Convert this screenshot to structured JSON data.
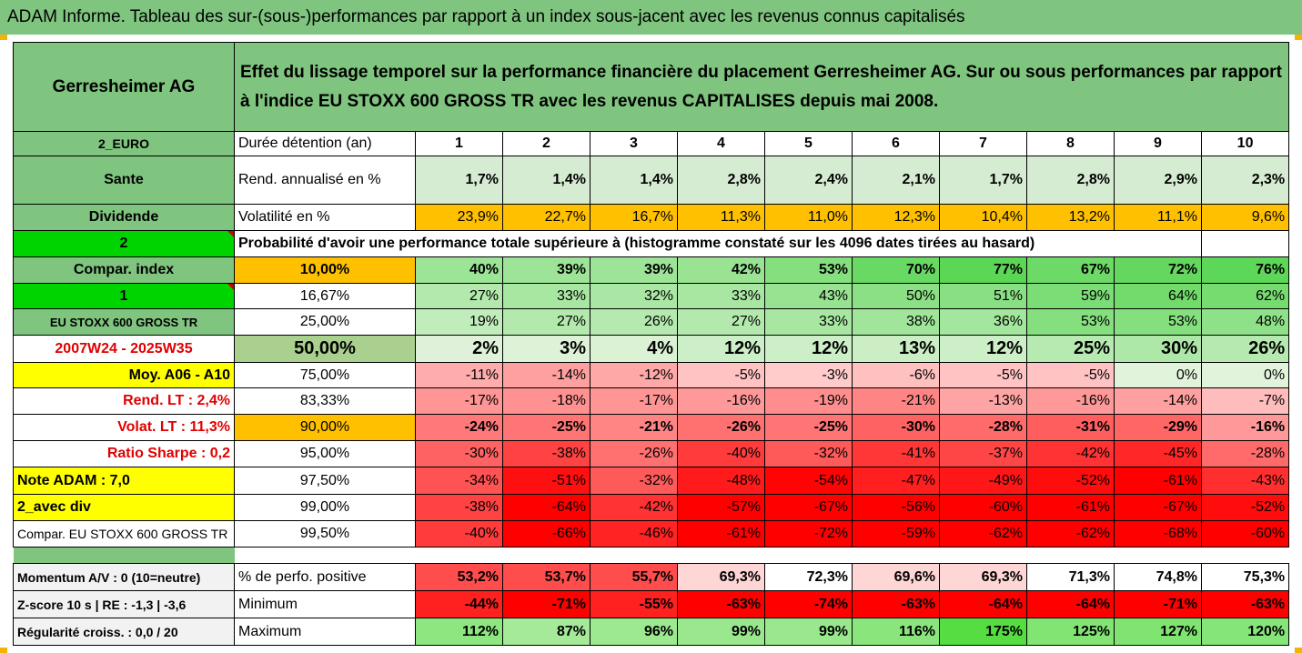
{
  "banner": "ADAM Informe. Tableau des sur-(sous-)performances par rapport à un index sous-jacent avec les revenus connus capitalisés",
  "header": {
    "company": "Gerresheimer AG",
    "description": "Effet du lissage temporel sur la performance financière du placement Gerresheimer AG. Sur ou sous performances par rapport à l'indice EU STOXX 600 GROSS TR avec les revenus CAPITALISES depuis mai 2008."
  },
  "rows": {
    "duration": {
      "side": "2_EURO",
      "label": "Durée détention (an)",
      "values": [
        "1",
        "2",
        "3",
        "4",
        "5",
        "6",
        "7",
        "8",
        "9",
        "10"
      ]
    },
    "rend": {
      "side": "Sante",
      "label": "Rend. annualisé en %",
      "values": [
        "1,7%",
        "1,4%",
        "1,4%",
        "2,8%",
        "2,4%",
        "2,1%",
        "1,7%",
        "2,8%",
        "2,9%",
        "2,3%"
      ]
    },
    "vol": {
      "side": "Dividende",
      "label": "Volatilité en %",
      "values": [
        "23,9%",
        "22,7%",
        "16,7%",
        "11,3%",
        "11,0%",
        "12,3%",
        "10,4%",
        "13,2%",
        "11,1%",
        "9,6%"
      ]
    },
    "prob_header": {
      "side": "2",
      "text": "Probabilité d'avoir une performance totale supérieure à (histogramme constaté sur les 4096 dates tirées au hasard)"
    }
  },
  "prob_rows": [
    {
      "side": "Compar. index",
      "threshold": "10,00%",
      "values": [
        "40%",
        "39%",
        "39%",
        "42%",
        "53%",
        "70%",
        "77%",
        "67%",
        "72%",
        "76%"
      ]
    },
    {
      "side": "1",
      "threshold": "16,67%",
      "values": [
        "27%",
        "33%",
        "32%",
        "33%",
        "43%",
        "50%",
        "51%",
        "59%",
        "64%",
        "62%"
      ]
    },
    {
      "side": "EU STOXX 600 GROSS TR",
      "threshold": "25,00%",
      "values": [
        "19%",
        "27%",
        "26%",
        "27%",
        "33%",
        "38%",
        "36%",
        "53%",
        "53%",
        "48%"
      ]
    },
    {
      "side": "2007W24 - 2025W35",
      "threshold": "50,00%",
      "values": [
        "2%",
        "3%",
        "4%",
        "12%",
        "12%",
        "13%",
        "12%",
        "25%",
        "30%",
        "26%"
      ]
    },
    {
      "side": "Moy. A06 - A10",
      "threshold": "75,00%",
      "values": [
        "-11%",
        "-14%",
        "-12%",
        "-5%",
        "-3%",
        "-6%",
        "-5%",
        "-5%",
        "0%",
        "0%"
      ]
    },
    {
      "side": "Rend. LT :    2,4%",
      "threshold": "83,33%",
      "values": [
        "-17%",
        "-18%",
        "-17%",
        "-16%",
        "-19%",
        "-21%",
        "-13%",
        "-16%",
        "-14%",
        "-7%"
      ]
    },
    {
      "side": "Volat. LT :   11,3%",
      "threshold": "90,00%",
      "values": [
        "-24%",
        "-25%",
        "-21%",
        "-26%",
        "-25%",
        "-30%",
        "-28%",
        "-31%",
        "-29%",
        "-16%"
      ]
    },
    {
      "side": "Ratio Sharpe :   0,2",
      "threshold": "95,00%",
      "values": [
        "-30%",
        "-38%",
        "-26%",
        "-40%",
        "-32%",
        "-41%",
        "-37%",
        "-42%",
        "-45%",
        "-28%"
      ]
    },
    {
      "side": "Note ADAM : 7,0",
      "threshold": "97,50%",
      "values": [
        "-34%",
        "-51%",
        "-32%",
        "-48%",
        "-54%",
        "-47%",
        "-49%",
        "-52%",
        "-61%",
        "-43%"
      ]
    },
    {
      "side": "2_avec div",
      "threshold": "99,00%",
      "values": [
        "-38%",
        "-64%",
        "-42%",
        "-57%",
        "-67%",
        "-56%",
        "-60%",
        "-61%",
        "-67%",
        "-52%"
      ]
    },
    {
      "side": "Compar. EU STOXX 600 GROSS TR",
      "threshold": "99,50%",
      "values": [
        "-40%",
        "-66%",
        "-46%",
        "-61%",
        "-72%",
        "-59%",
        "-62%",
        "-62%",
        "-68%",
        "-60%"
      ]
    }
  ],
  "bottom_rows": [
    {
      "side": "Momentum A/V : 0 (10=neutre)",
      "label": "% de perfo. positive",
      "values": [
        "53,2%",
        "53,7%",
        "55,7%",
        "69,3%",
        "72,3%",
        "69,6%",
        "69,3%",
        "71,3%",
        "74,8%",
        "75,3%"
      ]
    },
    {
      "side": "Z-score 10 s  |  RE : -1,3  |  -3,6",
      "label": "Minimum",
      "values": [
        "-44%",
        "-71%",
        "-55%",
        "-63%",
        "-74%",
        "-63%",
        "-64%",
        "-64%",
        "-71%",
        "-63%"
      ]
    },
    {
      "side": "Régularité croiss. : 0,0 / 20",
      "label": "Maximum",
      "values": [
        "112%",
        "87%",
        "96%",
        "99%",
        "99%",
        "116%",
        "175%",
        "125%",
        "127%",
        "120%"
      ]
    }
  ],
  "colors": {
    "header_green": "#7fc47f",
    "orange": "#ffc000",
    "yellow": "#ffff00",
    "bright_green": "#00d400",
    "red": "#ff0000"
  }
}
